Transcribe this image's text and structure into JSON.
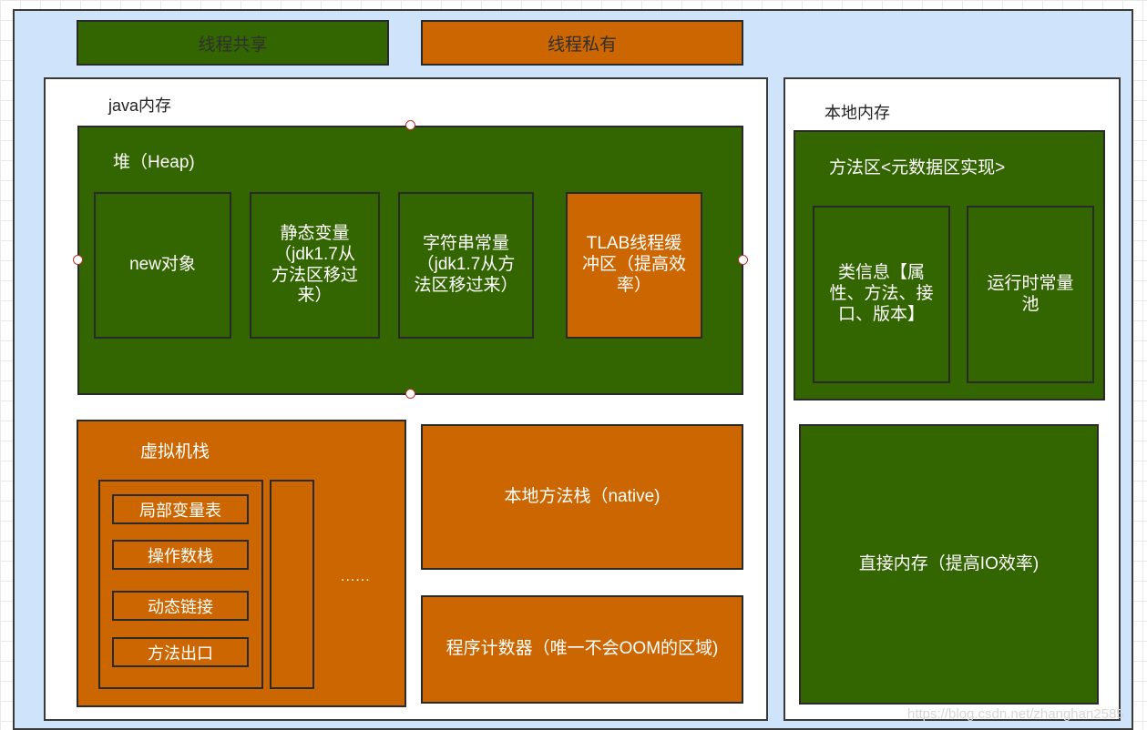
{
  "legend": {
    "shared": "线程共享",
    "private": "线程私有"
  },
  "java_memory": {
    "label": "java内存",
    "heap": {
      "title": "堆（Heap)",
      "items": [
        "new对象",
        "静态变量\n（jdk1.7从\n方法区移过\n来）",
        "字符串常量\n（jdk1.7从方\n法区移过来）",
        "TLAB线程缓\n冲区（提高效\n率）"
      ]
    },
    "vm_stack": {
      "title": "虚拟机栈",
      "frame_items": [
        "局部变量表",
        "操作数栈",
        "动态链接",
        "方法出口"
      ],
      "ellipsis": "......"
    },
    "native_stack": "本地方法栈（native)",
    "pc_register": "程序计数器（唯一不会OOM的区域)"
  },
  "local_memory": {
    "label": "本地内存",
    "method_area": {
      "title": "方法区<元数据区实现>",
      "class_info": "类信息【属\n性、方法、接\n口、版本】",
      "runtime_constant_pool": "运行时常量\n池"
    },
    "direct_memory": "直接内存（提高IO效率)"
  },
  "watermark": "https://blog.csdn.net/zhanghan2585",
  "colors": {
    "shared_green": "#336600",
    "private_orange": "#cc6600",
    "background_blue": "#cfe3fb"
  }
}
